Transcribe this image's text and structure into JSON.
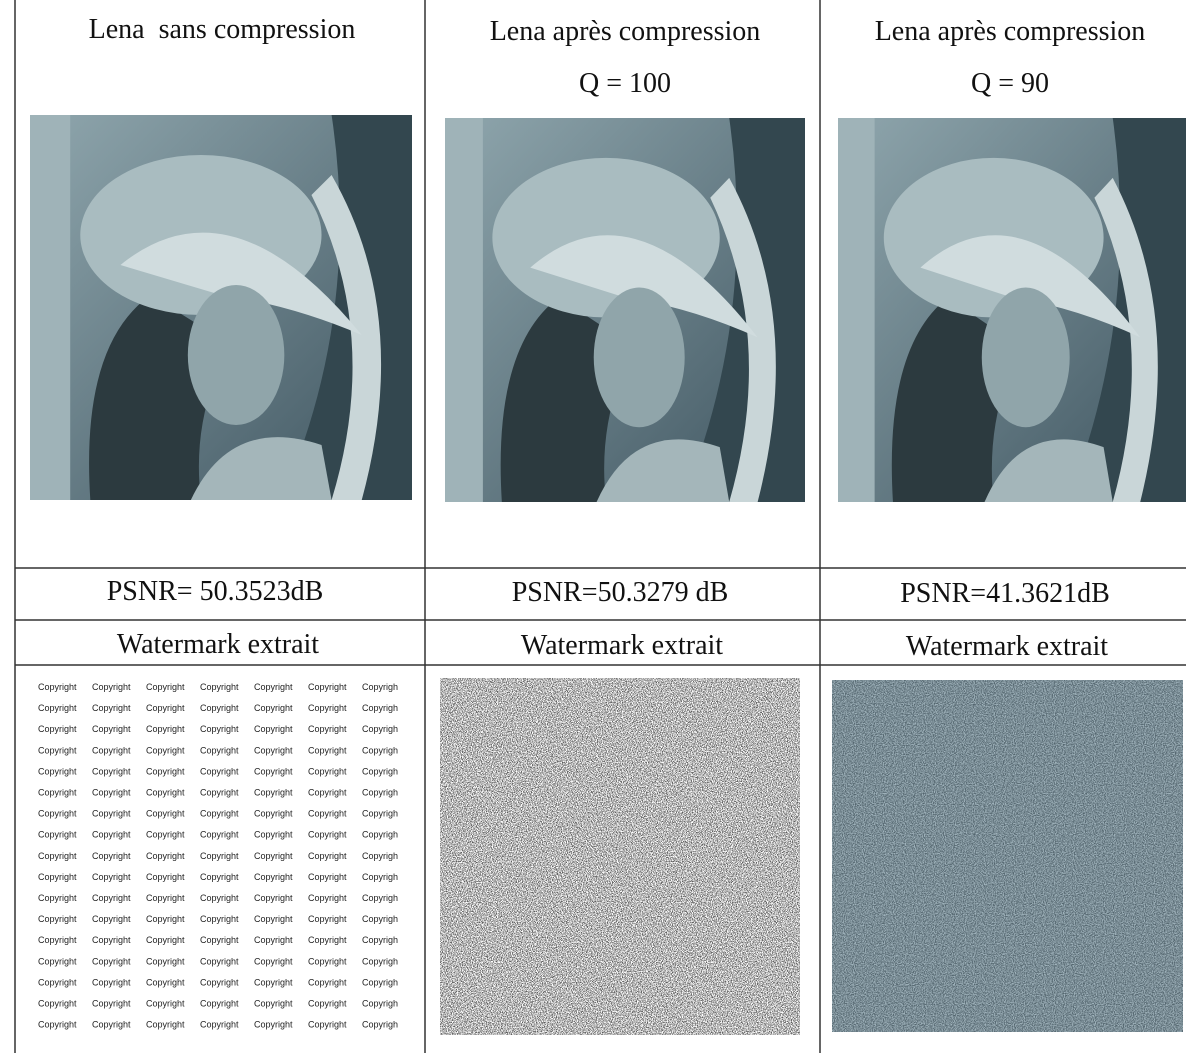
{
  "columns": [
    {
      "title": "Lena  sans compression",
      "psnr": "PSNR= 50.3523dB",
      "watermark_label": "Watermark extrait"
    },
    {
      "title": "Lena après compression",
      "quality": "Q = 100",
      "psnr": "PSNR=50.3279 dB",
      "watermark_label": "Watermark extrait"
    },
    {
      "title": "Lena après compression",
      "quality": "Q = 90",
      "psnr": "PSNR=41.3621dB",
      "watermark_label": "Watermark extrait"
    }
  ],
  "watermark_text": {
    "word": "Copyright",
    "truncated": "Copyrigh"
  }
}
